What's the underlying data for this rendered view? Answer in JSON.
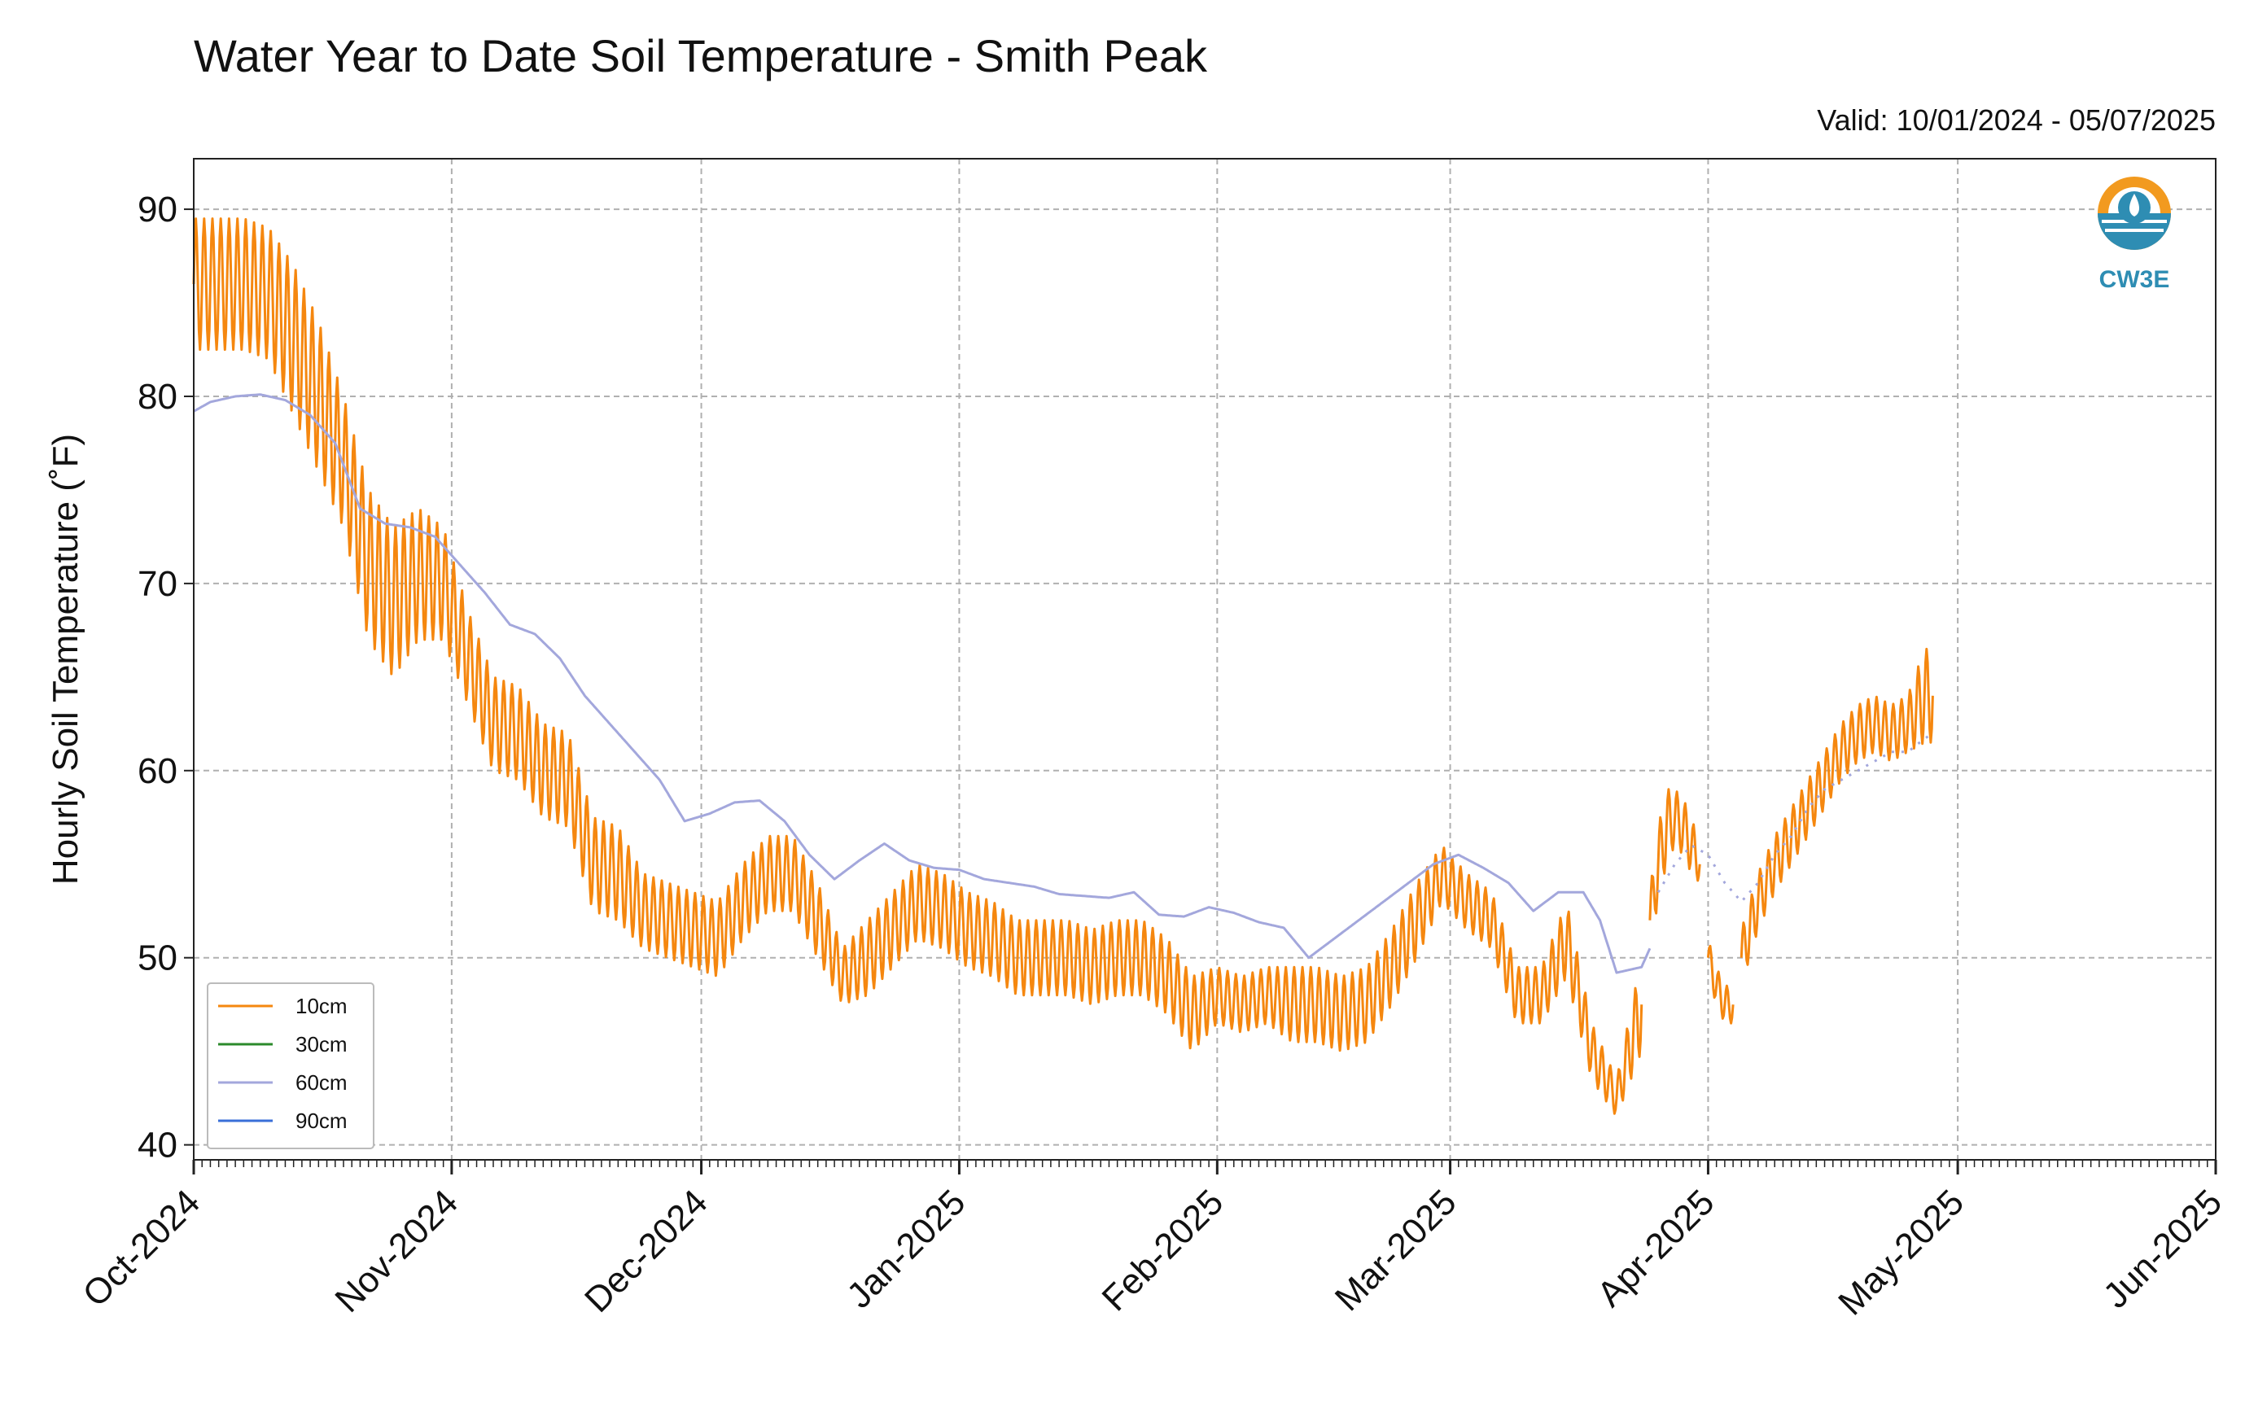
{
  "chart_data": {
    "type": "line",
    "title": "Water Year to Date Soil Temperature - Smith Peak",
    "subtitle": "Valid: 10/01/2024 - 05/07/2025",
    "ylabel": "Hourly Soil Temperature (˚F)",
    "xlabel": "",
    "ylim": [
      39.2,
      92.7
    ],
    "xlim": [
      "2024-10-01",
      "2025-06-01"
    ],
    "yticks": [
      40,
      50,
      60,
      70,
      80,
      90
    ],
    "xticks": [
      {
        "date": "2024-10-01",
        "label": "Oct-2024"
      },
      {
        "date": "2024-11-01",
        "label": "Nov-2024"
      },
      {
        "date": "2024-12-01",
        "label": "Dec-2024"
      },
      {
        "date": "2025-01-01",
        "label": "Jan-2025"
      },
      {
        "date": "2025-02-01",
        "label": "Feb-2025"
      },
      {
        "date": "2025-03-01",
        "label": "Mar-2025"
      },
      {
        "date": "2025-04-01",
        "label": "Apr-2025"
      },
      {
        "date": "2025-05-01",
        "label": "May-2025"
      },
      {
        "date": "2025-06-01",
        "label": "Jun-2025"
      }
    ],
    "grid": true,
    "legend_position": "lower-left",
    "logo_text": "CW3E",
    "series": [
      {
        "name": "10cm",
        "color": "#f5870f",
        "segments": [
          {
            "x": [
              "2024-10-01",
              "2024-10-04",
              "2024-10-07",
              "2024-10-10",
              "2024-10-13",
              "2024-10-16",
              "2024-10-19",
              "2024-10-22",
              "2024-10-25",
              "2024-10-28",
              "2024-10-31",
              "2024-11-03",
              "2024-11-06",
              "2024-11-09",
              "2024-11-12",
              "2024-11-15",
              "2024-11-18",
              "2024-11-21",
              "2024-11-24",
              "2024-11-27",
              "2024-11-30",
              "2024-12-03",
              "2024-12-06",
              "2024-12-09",
              "2024-12-12",
              "2024-12-15",
              "2024-12-18",
              "2024-12-21",
              "2024-12-24",
              "2024-12-27",
              "2024-12-30",
              "2025-01-02",
              "2025-01-05",
              "2025-01-08",
              "2025-01-11",
              "2025-01-14",
              "2025-01-17",
              "2025-01-20",
              "2025-01-23",
              "2025-01-26",
              "2025-01-29",
              "2025-02-01",
              "2025-02-04",
              "2025-02-07",
              "2025-02-10",
              "2025-02-13",
              "2025-02-16",
              "2025-02-19",
              "2025-02-22",
              "2025-02-25",
              "2025-02-28",
              "2025-03-03",
              "2025-03-06",
              "2025-03-09",
              "2025-03-12",
              "2025-03-15",
              "2025-03-18",
              "2025-03-21",
              "2025-03-24"
            ],
            "mean": [
              86,
              86,
              86,
              85.5,
              83,
              80,
              76.5,
              71,
              69,
              70.5,
              70,
              66,
              62.5,
              62,
              60,
              59.5,
              55,
              54.5,
              52.5,
              52,
              51.5,
              51,
              53,
              54.5,
              54.5,
              52,
              49,
              50,
              51.5,
              53,
              52.5,
              51.5,
              51,
              50,
              50,
              50,
              49.5,
              50,
              50,
              49,
              47,
              48,
              47.5,
              48,
              47.5,
              47.5,
              47,
              47.5,
              49.5,
              52,
              54.5,
              53,
              52,
              48,
              48,
              51,
              45,
              42.5,
              47.5
            ],
            "amp": [
              3.5,
              3.5,
              3.5,
              3.5,
              4,
              4,
              3.5,
              4,
              4,
              3.5,
              3,
              2.5,
              2.5,
              2.5,
              2.5,
              2.5,
              2.5,
              2.5,
              2,
              2,
              2,
              2,
              2,
              2,
              2,
              2,
              1.5,
              2,
              2,
              2,
              2,
              2,
              2,
              2,
              2,
              2,
              2,
              2,
              2,
              2,
              2,
              1.5,
              1.5,
              1.5,
              2,
              2,
              2,
              2,
              2,
              2,
              1.5,
              1.5,
              1.5,
              1.5,
              1.5,
              2,
              1.5,
              1,
              2.5
            ]
          },
          {
            "x": [
              "2025-03-25",
              "2025-03-26",
              "2025-03-27",
              "2025-03-28",
              "2025-03-29",
              "2025-03-30",
              "2025-03-31"
            ],
            "mean": [
              52,
              55,
              57,
              57.5,
              57,
              56,
              55
            ],
            "amp": [
              1.5,
              2,
              2,
              1.5,
              1.5,
              1.5,
              1
            ]
          },
          {
            "x": [
              "2025-04-01",
              "2025-04-02",
              "2025-04-03",
              "2025-04-04"
            ],
            "mean": [
              50,
              48.5,
              47.5,
              47.5
            ],
            "amp": [
              1,
              1,
              1,
              1
            ]
          },
          {
            "x": [
              "2025-04-05",
              "2025-04-07",
              "2025-04-09",
              "2025-04-11",
              "2025-04-13",
              "2025-04-15",
              "2025-04-17",
              "2025-04-19",
              "2025-04-21",
              "2025-04-23",
              "2025-04-25",
              "2025-04-27",
              "2025-04-28"
            ],
            "mean": [
              50,
              53,
              55,
              56.5,
              58,
              59.5,
              61,
              62,
              62.5,
              62,
              62.5,
              64,
              64
            ],
            "amp": [
              1.5,
              1.5,
              1.5,
              1.5,
              1.5,
              1.5,
              1.5,
              1.5,
              1.5,
              1.5,
              1.5,
              2.5,
              2.5
            ]
          }
        ]
      },
      {
        "name": "30cm",
        "color": "#2b8a2b",
        "segments": []
      },
      {
        "name": "60cm",
        "color": "#a3a7dc",
        "segments": [
          {
            "x": [
              "2024-10-01",
              "2024-10-03",
              "2024-10-06",
              "2024-10-09",
              "2024-10-12",
              "2024-10-15",
              "2024-10-18",
              "2024-10-21",
              "2024-10-24",
              "2024-10-27",
              "2024-10-30",
              "2024-11-02",
              "2024-11-05",
              "2024-11-08",
              "2024-11-11",
              "2024-11-14",
              "2024-11-17",
              "2024-11-20",
              "2024-11-23",
              "2024-11-26",
              "2024-11-29",
              "2024-12-02",
              "2024-12-05",
              "2024-12-08",
              "2024-12-11",
              "2024-12-14",
              "2024-12-17",
              "2024-12-20",
              "2024-12-23",
              "2024-12-26",
              "2024-12-29",
              "2025-01-01",
              "2025-01-04",
              "2025-01-07",
              "2025-01-10",
              "2025-01-13",
              "2025-01-16",
              "2025-01-19",
              "2025-01-22",
              "2025-01-25",
              "2025-01-28",
              "2025-01-31",
              "2025-02-03",
              "2025-02-06",
              "2025-02-09",
              "2025-02-12",
              "2025-02-15",
              "2025-02-18",
              "2025-02-21",
              "2025-02-24",
              "2025-02-27",
              "2025-03-02",
              "2025-03-05",
              "2025-03-08",
              "2025-03-11",
              "2025-03-14",
              "2025-03-17",
              "2025-03-19",
              "2025-03-21",
              "2025-03-24",
              "2025-03-25"
            ],
            "mean": [
              79.2,
              79.7,
              80,
              80.1,
              79.8,
              79,
              77.5,
              74,
              73.2,
              73,
              72.5,
              71,
              69.5,
              67.8,
              67.3,
              66,
              64,
              62.5,
              61,
              59.5,
              57.3,
              57.7,
              58.3,
              58.4,
              57.3,
              55.5,
              54.2,
              55.2,
              56.1,
              55.2,
              54.8,
              54.7,
              54.2,
              54,
              53.8,
              53.4,
              53.3,
              53.2,
              53.5,
              52.3,
              52.2,
              52.7,
              52.4,
              51.9,
              51.6,
              50,
              51,
              52,
              53,
              54,
              55,
              55.5,
              54.8,
              54,
              52.5,
              53.5,
              53.5,
              52,
              49.2,
              49.5,
              50.5
            ],
            "amp": [
              0
            ]
          },
          {
            "x": [
              "2025-03-26",
              "2025-03-28",
              "2025-03-30",
              "2025-04-01",
              "2025-04-03",
              "2025-04-05",
              "2025-04-07",
              "2025-04-09",
              "2025-04-11",
              "2025-04-13",
              "2025-04-15",
              "2025-04-17",
              "2025-04-19",
              "2025-04-21",
              "2025-04-23",
              "2025-04-25",
              "2025-04-27",
              "2025-04-28"
            ],
            "mean": [
              53.5,
              55,
              56,
              55.5,
              54,
              53,
              54,
              55.5,
              56.5,
              58,
              59,
              59.5,
              60,
              60.5,
              61,
              61,
              61.7,
              62
            ],
            "amp": [
              0
            ],
            "dotted": true
          }
        ]
      },
      {
        "name": "90cm",
        "color": "#3a6fd8",
        "segments": []
      }
    ]
  }
}
